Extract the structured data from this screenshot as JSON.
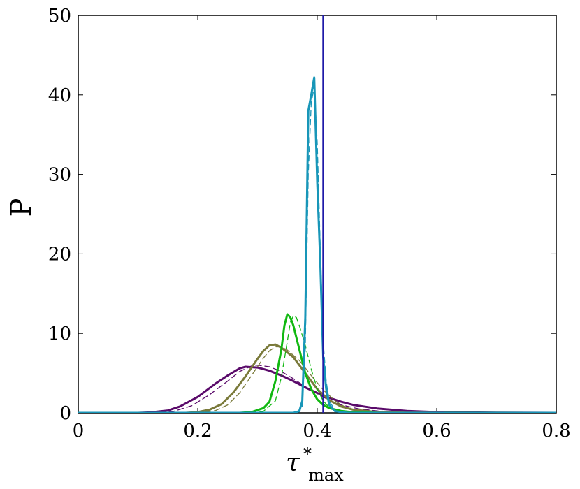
{
  "chart_data": {
    "type": "line",
    "xlabel": "τ",
    "xlabel_sup": "*",
    "xlabel_sub": "max",
    "ylabel": "P",
    "xlim": [
      0,
      0.8
    ],
    "ylim": [
      0,
      50
    ],
    "x_ticks": [
      "0",
      "0.2",
      "0.4",
      "0.6",
      "0.8"
    ],
    "y_ticks": [
      "0",
      "10",
      "20",
      "30",
      "40",
      "50"
    ],
    "vertical_line": {
      "x": 0.41,
      "color": "#1f1aa8"
    },
    "series": [
      {
        "color": "#5a0a6a",
        "dashed": false,
        "points": [
          [
            0,
            0
          ],
          [
            0.1,
            0
          ],
          [
            0.12,
            0.05
          ],
          [
            0.15,
            0.3
          ],
          [
            0.17,
            0.8
          ],
          [
            0.2,
            2.0
          ],
          [
            0.23,
            3.7
          ],
          [
            0.25,
            4.7
          ],
          [
            0.27,
            5.6
          ],
          [
            0.28,
            5.8
          ],
          [
            0.3,
            5.7
          ],
          [
            0.32,
            5.3
          ],
          [
            0.34,
            4.7
          ],
          [
            0.36,
            4.0
          ],
          [
            0.38,
            3.2
          ],
          [
            0.4,
            2.5
          ],
          [
            0.42,
            1.9
          ],
          [
            0.44,
            1.4
          ],
          [
            0.46,
            1.0
          ],
          [
            0.5,
            0.55
          ],
          [
            0.55,
            0.25
          ],
          [
            0.6,
            0.1
          ],
          [
            0.7,
            0.02
          ],
          [
            0.8,
            0
          ]
        ]
      },
      {
        "color": "#5a0a6a",
        "dashed": true,
        "points": [
          [
            0,
            0
          ],
          [
            0.13,
            0
          ],
          [
            0.16,
            0.2
          ],
          [
            0.19,
            0.9
          ],
          [
            0.22,
            2.3
          ],
          [
            0.25,
            4.0
          ],
          [
            0.27,
            5.2
          ],
          [
            0.29,
            5.9
          ],
          [
            0.3,
            6.0
          ],
          [
            0.32,
            5.8
          ],
          [
            0.34,
            5.2
          ],
          [
            0.36,
            4.3
          ],
          [
            0.38,
            3.3
          ],
          [
            0.4,
            2.4
          ],
          [
            0.42,
            1.6
          ],
          [
            0.44,
            1.0
          ],
          [
            0.47,
            0.5
          ],
          [
            0.5,
            0.25
          ],
          [
            0.55,
            0.08
          ],
          [
            0.6,
            0.02
          ],
          [
            0.8,
            0
          ]
        ]
      },
      {
        "color": "#7a7a3a",
        "dashed": false,
        "points": [
          [
            0,
            0
          ],
          [
            0.18,
            0
          ],
          [
            0.2,
            0.1
          ],
          [
            0.22,
            0.4
          ],
          [
            0.24,
            1.1
          ],
          [
            0.26,
            2.6
          ],
          [
            0.28,
            4.6
          ],
          [
            0.3,
            6.8
          ],
          [
            0.31,
            7.8
          ],
          [
            0.32,
            8.5
          ],
          [
            0.33,
            8.6
          ],
          [
            0.34,
            8.2
          ],
          [
            0.36,
            7.0
          ],
          [
            0.38,
            5.0
          ],
          [
            0.4,
            3.0
          ],
          [
            0.42,
            1.6
          ],
          [
            0.44,
            0.8
          ],
          [
            0.46,
            0.4
          ],
          [
            0.5,
            0.1
          ],
          [
            0.55,
            0.02
          ],
          [
            0.8,
            0
          ]
        ]
      },
      {
        "color": "#7a7a3a",
        "dashed": true,
        "points": [
          [
            0,
            0
          ],
          [
            0.2,
            0
          ],
          [
            0.23,
            0.3
          ],
          [
            0.25,
            1.0
          ],
          [
            0.27,
            2.5
          ],
          [
            0.29,
            4.7
          ],
          [
            0.31,
            6.9
          ],
          [
            0.32,
            7.8
          ],
          [
            0.33,
            8.3
          ],
          [
            0.34,
            8.3
          ],
          [
            0.35,
            7.9
          ],
          [
            0.37,
            6.6
          ],
          [
            0.39,
            4.7
          ],
          [
            0.41,
            2.9
          ],
          [
            0.43,
            1.5
          ],
          [
            0.45,
            0.6
          ],
          [
            0.48,
            0.15
          ],
          [
            0.52,
            0.02
          ],
          [
            0.8,
            0
          ]
        ]
      },
      {
        "color": "#11b811",
        "dashed": false,
        "points": [
          [
            0,
            0
          ],
          [
            0.27,
            0
          ],
          [
            0.29,
            0.1
          ],
          [
            0.31,
            0.6
          ],
          [
            0.32,
            1.4
          ],
          [
            0.33,
            4.0
          ],
          [
            0.34,
            8.0
          ],
          [
            0.345,
            11.0
          ],
          [
            0.35,
            12.4
          ],
          [
            0.355,
            12.0
          ],
          [
            0.36,
            11.0
          ],
          [
            0.37,
            8.0
          ],
          [
            0.38,
            5.0
          ],
          [
            0.39,
            3.0
          ],
          [
            0.4,
            1.7
          ],
          [
            0.41,
            1.0
          ],
          [
            0.42,
            0.6
          ],
          [
            0.44,
            0.25
          ],
          [
            0.46,
            0.08
          ],
          [
            0.5,
            0.01
          ],
          [
            0.8,
            0
          ]
        ]
      },
      {
        "color": "#11b811",
        "dashed": true,
        "points": [
          [
            0,
            0
          ],
          [
            0.29,
            0
          ],
          [
            0.31,
            0.2
          ],
          [
            0.33,
            1.5
          ],
          [
            0.34,
            4.5
          ],
          [
            0.35,
            9.0
          ],
          [
            0.355,
            11.4
          ],
          [
            0.36,
            12.2
          ],
          [
            0.365,
            12.0
          ],
          [
            0.37,
            11.0
          ],
          [
            0.38,
            8.5
          ],
          [
            0.39,
            5.5
          ],
          [
            0.4,
            3.0
          ],
          [
            0.41,
            1.5
          ],
          [
            0.42,
            0.7
          ],
          [
            0.44,
            0.2
          ],
          [
            0.47,
            0.03
          ],
          [
            0.8,
            0
          ]
        ]
      },
      {
        "color": "#1896b8",
        "dashed": false,
        "points": [
          [
            0,
            0
          ],
          [
            0.36,
            0
          ],
          [
            0.37,
            0.2
          ],
          [
            0.375,
            1.5
          ],
          [
            0.38,
            12.0
          ],
          [
            0.385,
            38.0
          ],
          [
            0.39,
            40.0
          ],
          [
            0.395,
            42.2
          ],
          [
            0.4,
            29.0
          ],
          [
            0.405,
            19.0
          ],
          [
            0.41,
            7.0
          ],
          [
            0.415,
            3.0
          ],
          [
            0.42,
            1.0
          ],
          [
            0.43,
            0.2
          ],
          [
            0.45,
            0
          ],
          [
            0.8,
            0
          ]
        ]
      },
      {
        "color": "#1896b8",
        "dashed": true,
        "points": [
          [
            0,
            0
          ],
          [
            0.365,
            0
          ],
          [
            0.375,
            0.8
          ],
          [
            0.38,
            8.0
          ],
          [
            0.385,
            30.0
          ],
          [
            0.39,
            39.0
          ],
          [
            0.395,
            41.0
          ],
          [
            0.4,
            34.0
          ],
          [
            0.405,
            21.0
          ],
          [
            0.41,
            9.0
          ],
          [
            0.415,
            4.0
          ],
          [
            0.42,
            1.5
          ],
          [
            0.43,
            0.3
          ],
          [
            0.45,
            0
          ],
          [
            0.8,
            0
          ]
        ]
      }
    ]
  }
}
